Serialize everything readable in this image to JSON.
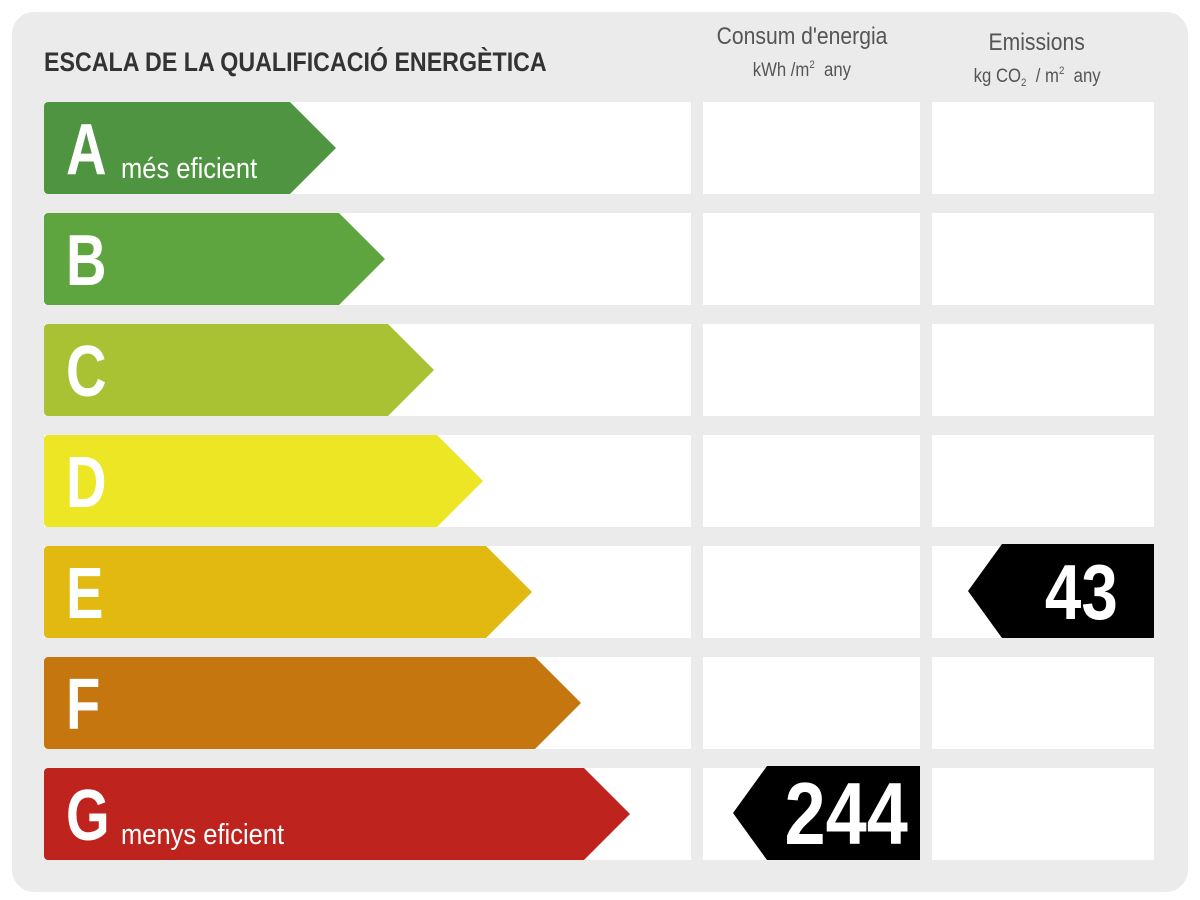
{
  "title": "ESCALA DE LA QUALIFICACIÓ ENERGÈTICA",
  "columns": {
    "consumption": {
      "title": "Consum d'energia",
      "unit_prefix": "kWh /m",
      "unit_sup": "2",
      "unit_suffix": "any"
    },
    "emissions": {
      "title": "Emissions",
      "unit_a": "kg CO",
      "unit_a_sub": "2",
      "unit_b": "/ m",
      "unit_b_sup": "2",
      "unit_c": "any"
    }
  },
  "grades": [
    {
      "letter": "A",
      "label": "més eficient",
      "color": "#4f9440"
    },
    {
      "letter": "B",
      "label": "",
      "color": "#5ea53f"
    },
    {
      "letter": "C",
      "label": "",
      "color": "#a8c234"
    },
    {
      "letter": "D",
      "label": "",
      "color": "#ece625"
    },
    {
      "letter": "E",
      "label": "",
      "color": "#e1b911"
    },
    {
      "letter": "F",
      "label": "",
      "color": "#c5760f"
    },
    {
      "letter": "G",
      "label": "menys eficient",
      "color": "#be231d"
    }
  ],
  "ratings": {
    "consumption": {
      "grade": "G",
      "value": "244"
    },
    "emissions": {
      "grade": "E",
      "value": "43"
    }
  }
}
